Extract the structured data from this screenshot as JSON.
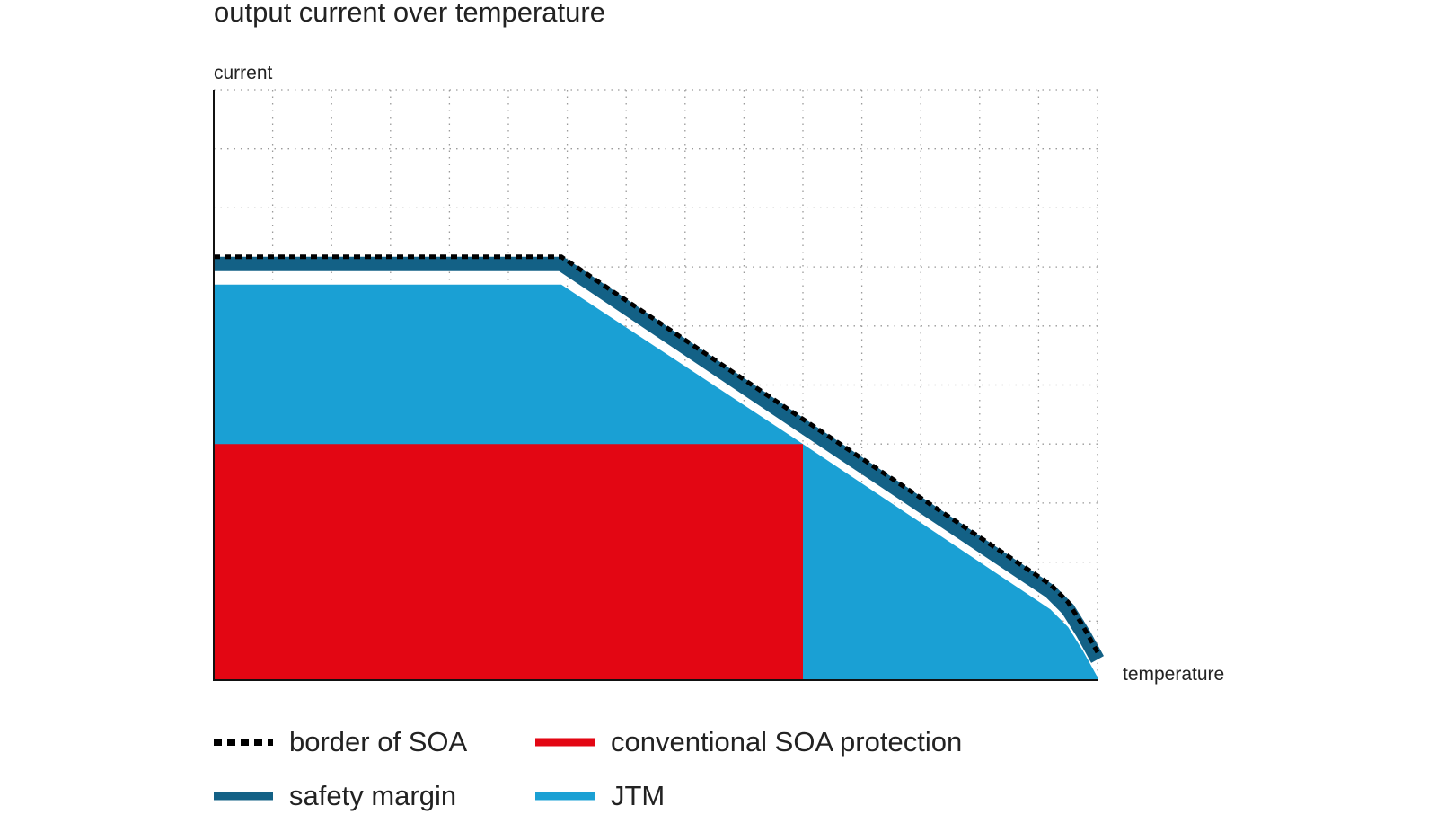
{
  "chart_data": {
    "type": "area",
    "title": "output current over temperature",
    "xlabel": "temperature",
    "ylabel": "current",
    "xlim": [
      0,
      15
    ],
    "ylim": [
      0,
      10
    ],
    "grid": true,
    "legend_position": "bottom",
    "series": [
      {
        "key": "conventional",
        "name": "conventional SOA protection",
        "color": "#e30613",
        "x": [
          0,
          10,
          10,
          0
        ],
        "y": [
          0,
          0,
          4,
          4
        ]
      },
      {
        "key": "jtm",
        "name": "JTM",
        "color": "#1aa0d4",
        "x": [
          0,
          5.9,
          10,
          14.2,
          14.5,
          14.75,
          15,
          15,
          0
        ],
        "y": [
          6.7,
          6.7,
          4,
          1.2,
          0.9,
          0.5,
          0.05,
          0,
          0
        ]
      },
      {
        "key": "margin",
        "name": "safety margin",
        "color": "#136186",
        "x": [
          0,
          5.9,
          10,
          14.2,
          14.5,
          14.75,
          15
        ],
        "y": [
          7.05,
          7.05,
          4.3,
          1.5,
          1.2,
          0.8,
          0.35
        ]
      },
      {
        "key": "border",
        "name": "border of SOA",
        "color": "#000000",
        "x": [
          0,
          5.9,
          10,
          14.2,
          14.5,
          14.75,
          15
        ],
        "y": [
          7.05,
          7.05,
          4.3,
          1.5,
          1.2,
          0.8,
          0.35
        ]
      }
    ]
  },
  "legend": [
    {
      "key": "border",
      "label": "border of SOA"
    },
    {
      "key": "conventional",
      "label": "conventional SOA protection"
    },
    {
      "key": "margin",
      "label": "safety margin"
    },
    {
      "key": "jtm",
      "label": "JTM"
    }
  ]
}
